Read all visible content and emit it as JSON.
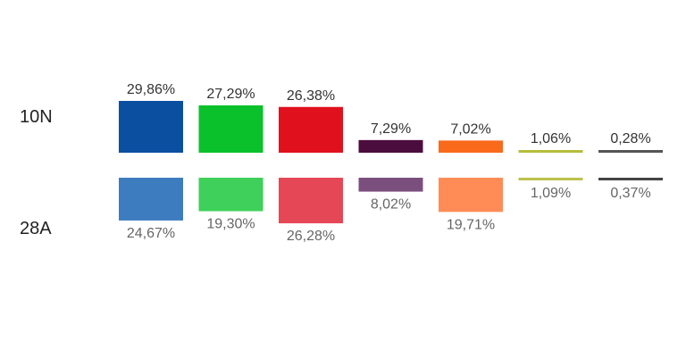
{
  "chart_data": {
    "type": "bar",
    "series": [
      {
        "name": "10N",
        "values": [
          29.86,
          27.29,
          26.38,
          7.29,
          7.02,
          1.06,
          0.28
        ],
        "labels": [
          "29,86%",
          "27,29%",
          "26,38%",
          "7,29%",
          "7,02%",
          "1,06%",
          "0,28%"
        ],
        "colors": [
          "#0a4fa0",
          "#0ac12b",
          "#e0111c",
          "#4b0d3e",
          "#fa6a1b",
          "#b6bd3a",
          "#555555"
        ]
      },
      {
        "name": "28A",
        "values": [
          24.67,
          19.3,
          26.28,
          8.02,
          19.71,
          1.09,
          0.37
        ],
        "labels": [
          "24,67%",
          "19,30%",
          "26,28%",
          "8,02%",
          "19,71%",
          "1,09%",
          "0,37%"
        ],
        "colors": [
          "#3d7cbf",
          "#3ed05a",
          "#e64756",
          "#7b4f7d",
          "#ff8c56",
          "#bcc24f",
          "#444444"
        ]
      }
    ],
    "ylim": [
      0,
      29.86
    ],
    "grid": false,
    "legend": "none"
  }
}
